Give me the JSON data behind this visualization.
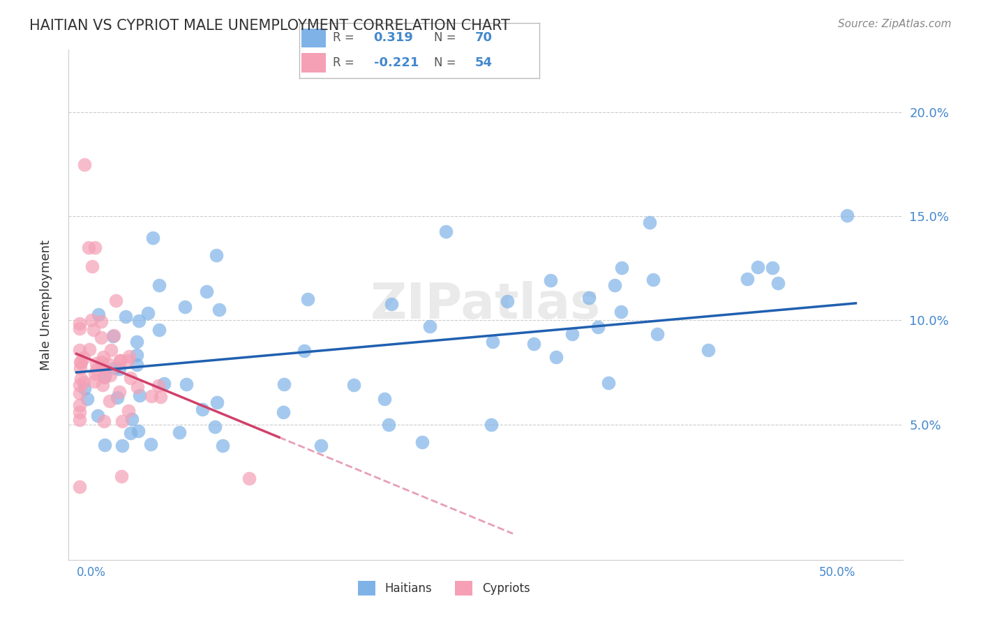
{
  "title": "HAITIAN VS CYPRIOT MALE UNEMPLOYMENT CORRELATION CHART",
  "source": "Source: ZipAtlas.com",
  "ylabel": "Male Unemployment",
  "ytick_values": [
    0.05,
    0.1,
    0.15,
    0.2
  ],
  "legend_r_haitian": "0.319",
  "legend_n_haitian": "70",
  "legend_r_cypriot": "-0.221",
  "legend_n_cypriot": "54",
  "haitian_color": "#7fb3e8",
  "cypriot_color": "#f5a0b5",
  "haitian_line_color": "#2060b0",
  "cypriot_line_color": "#d0406a",
  "axis_label_color": "#4488cc",
  "text_color": "#333333",
  "source_color": "#888888",
  "watermark_color": "#e8e8e8",
  "grid_color": "#cccccc"
}
